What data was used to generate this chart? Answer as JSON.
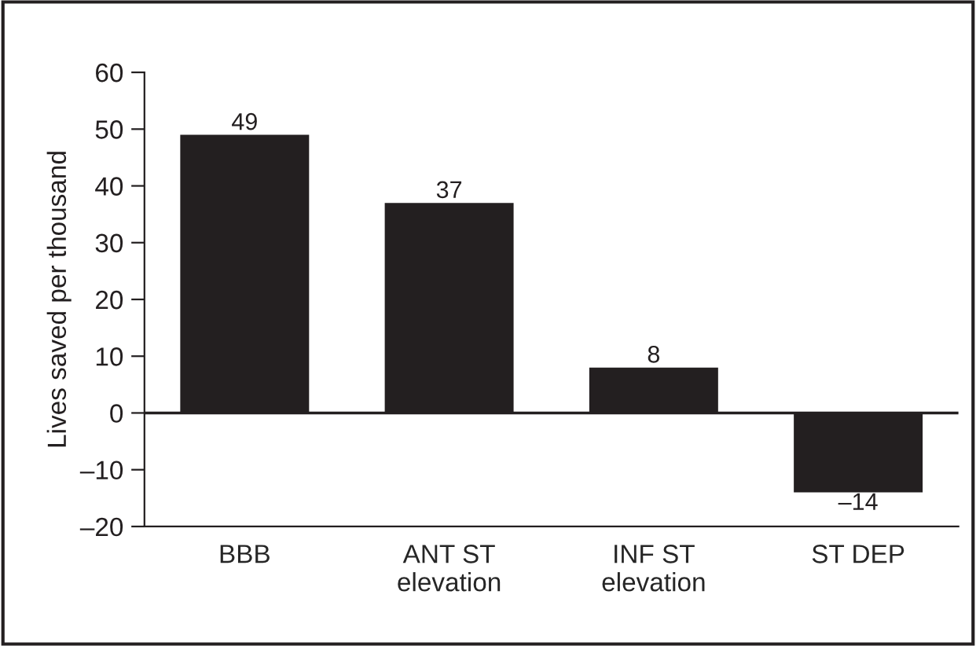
{
  "chart_data": {
    "type": "bar",
    "ylabel": "Lives saved per thousand",
    "categories": [
      "BBB",
      "ANT ST\nelevation",
      "INF ST\nelevation",
      "ST DEP"
    ],
    "values": [
      49,
      37,
      8,
      -14
    ],
    "color": "#231f20",
    "value_labels": [
      "49",
      "37",
      "8",
      "–14"
    ],
    "ylim": [
      -20,
      60
    ],
    "yticks": [
      {
        "value": -20,
        "label": "–20"
      },
      {
        "value": -10,
        "label": "–10"
      },
      0,
      10,
      20,
      30,
      40,
      50,
      60
    ],
    "ref_lines": [
      {
        "axis": "y",
        "value": 0,
        "color": "#231f20"
      }
    ],
    "grid": false,
    "legend": false
  }
}
